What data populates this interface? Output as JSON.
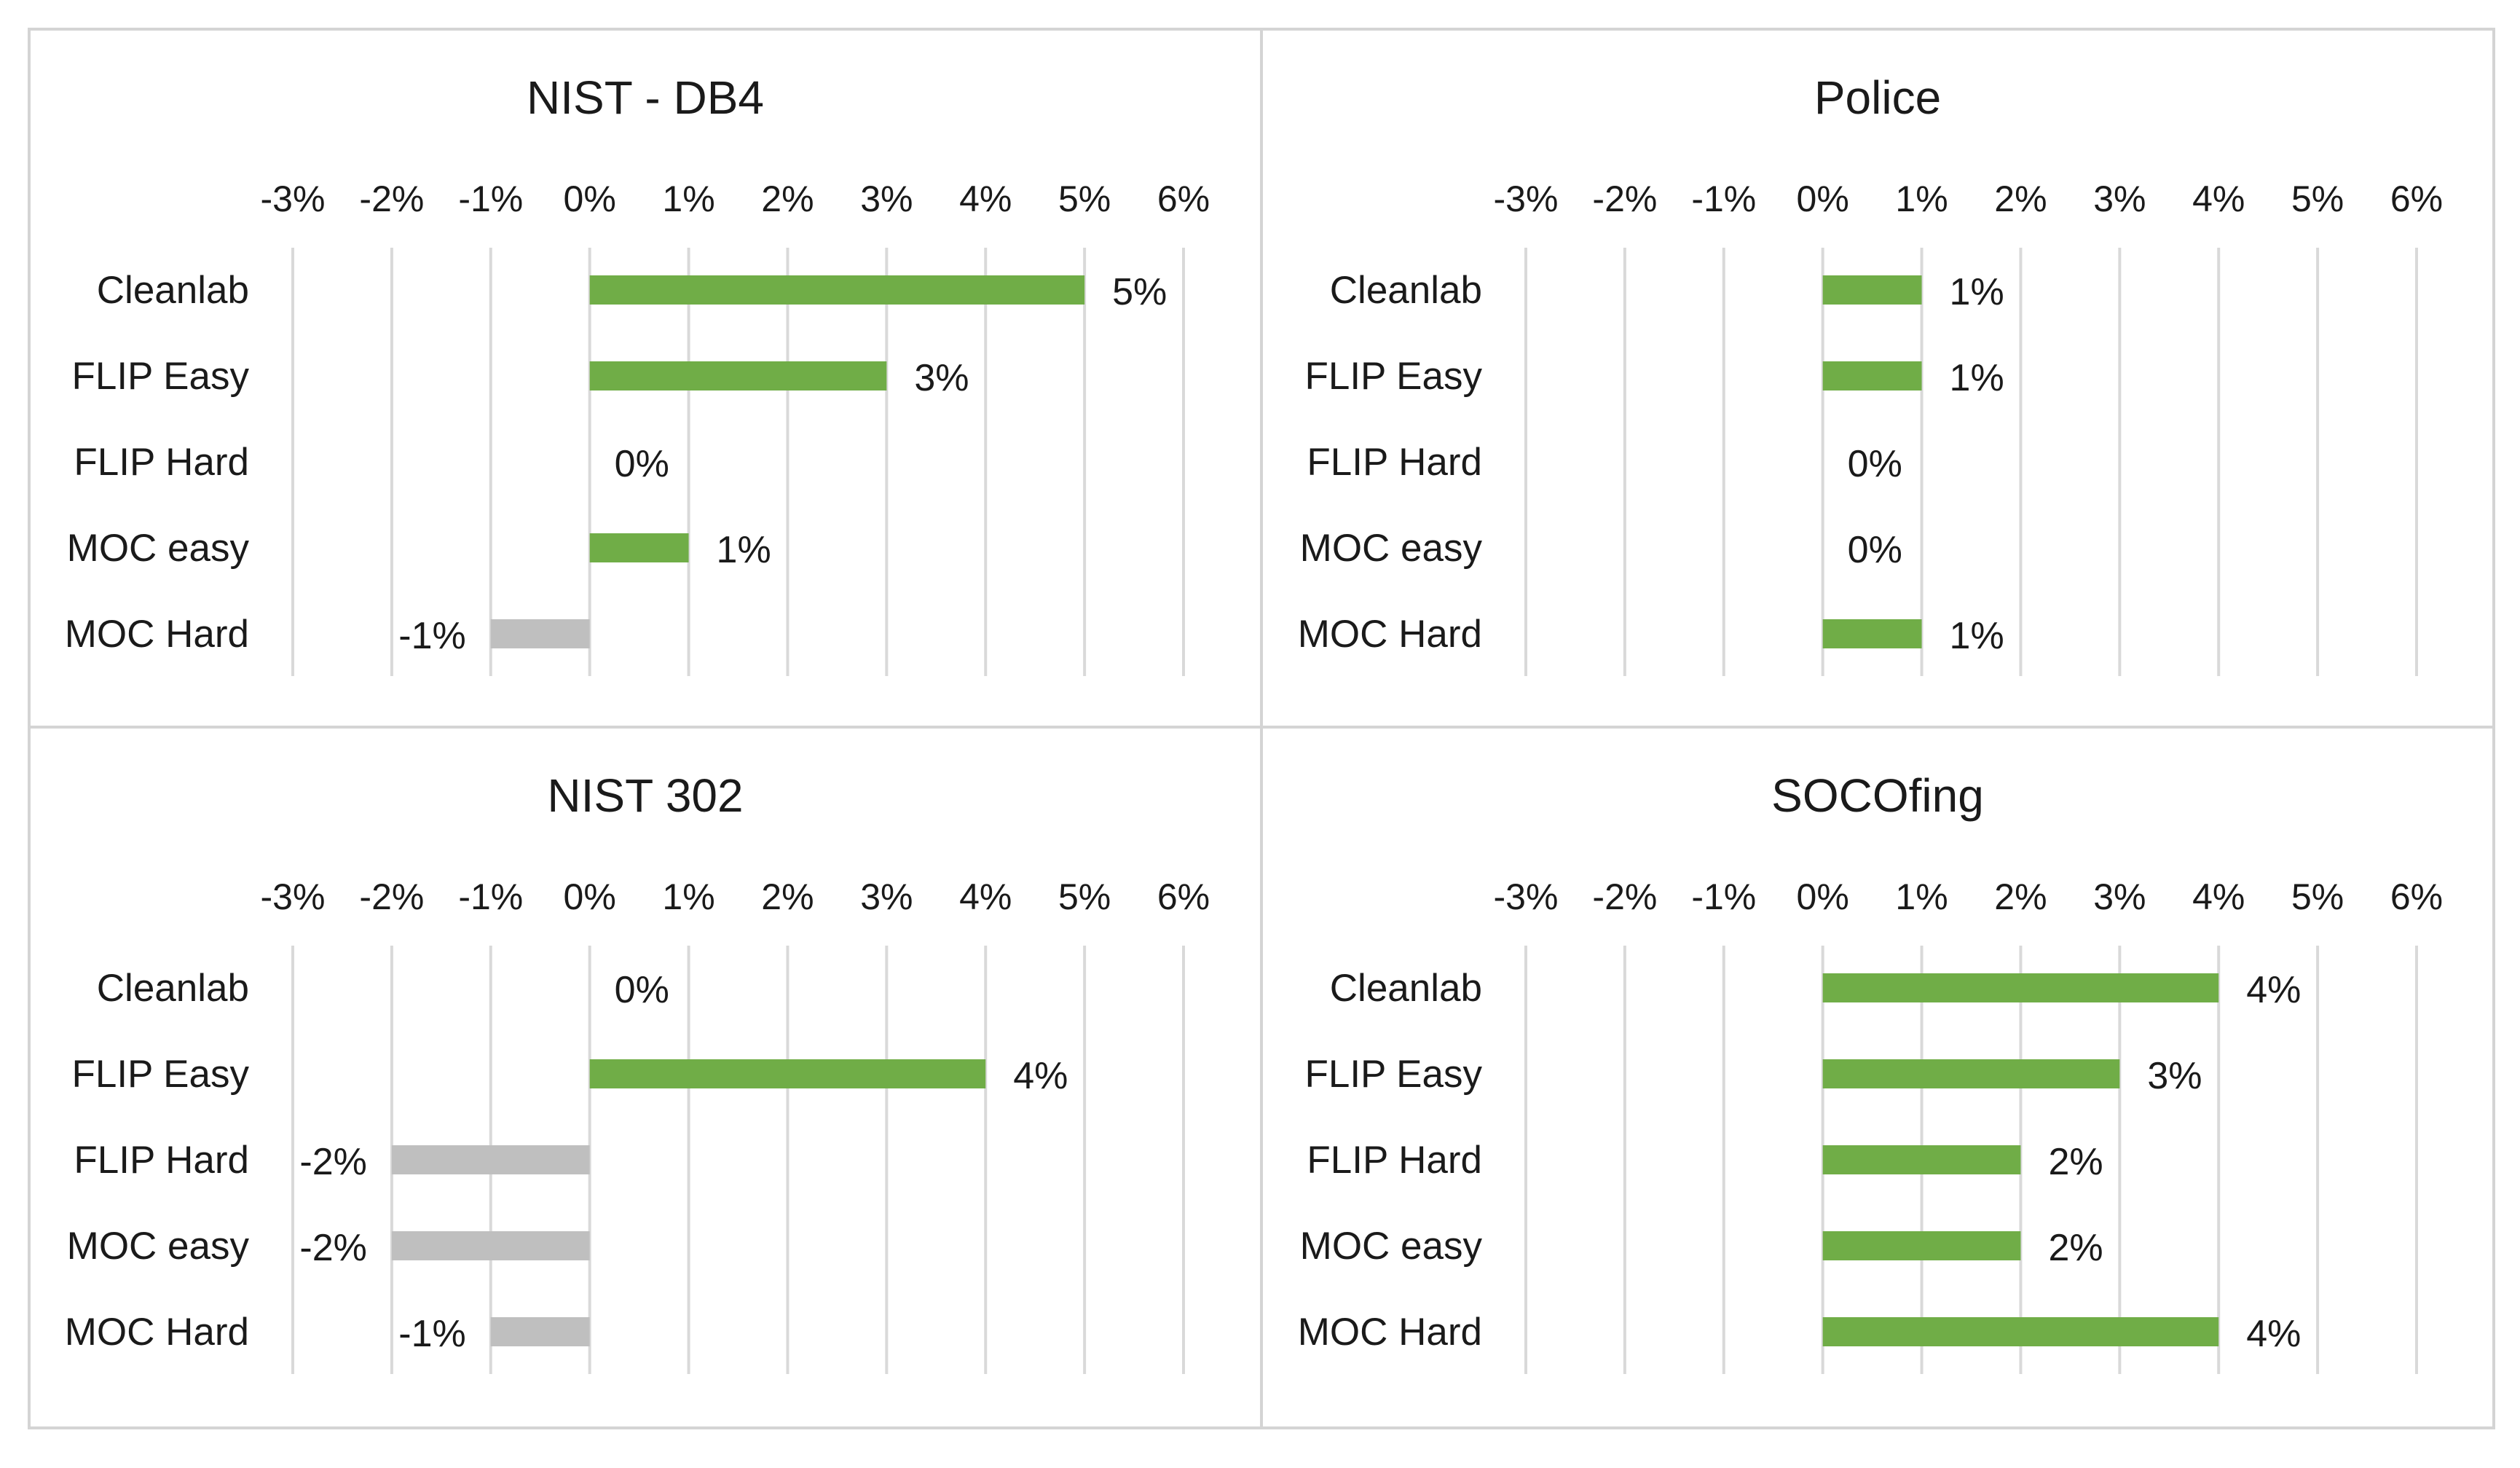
{
  "chart_data": [
    {
      "type": "bar",
      "orientation": "horizontal",
      "title": "NIST - DB4",
      "categories": [
        "Cleanlab",
        "FLIP Easy",
        "FLIP Hard",
        "MOC easy",
        "MOC Hard"
      ],
      "values": [
        5,
        3,
        0,
        1,
        -1
      ],
      "data_labels": [
        "5%",
        "3%",
        "0%",
        "1%",
        "-1%"
      ],
      "xlim": [
        -3,
        6
      ],
      "tick_values": [
        -3,
        -2,
        -1,
        0,
        1,
        2,
        3,
        4,
        5,
        6
      ],
      "tick_labels": [
        "-3%",
        "-2%",
        "-1%",
        "0%",
        "1%",
        "2%",
        "3%",
        "4%",
        "5%",
        "6%"
      ],
      "axis_position": "top",
      "grid": true,
      "positive_color": "#70ad47",
      "negative_color": "#bfbfbf"
    },
    {
      "type": "bar",
      "orientation": "horizontal",
      "title": "Police",
      "categories": [
        "Cleanlab",
        "FLIP Easy",
        "FLIP Hard",
        "MOC easy",
        "MOC Hard"
      ],
      "values": [
        1,
        1,
        0,
        0,
        1
      ],
      "data_labels": [
        "1%",
        "1%",
        "0%",
        "0%",
        "1%"
      ],
      "xlim": [
        -3,
        6
      ],
      "tick_values": [
        -3,
        -2,
        -1,
        0,
        1,
        2,
        3,
        4,
        5,
        6
      ],
      "tick_labels": [
        "-3%",
        "-2%",
        "-1%",
        "0%",
        "1%",
        "2%",
        "3%",
        "4%",
        "5%",
        "6%"
      ],
      "axis_position": "top",
      "grid": true,
      "positive_color": "#70ad47",
      "negative_color": "#bfbfbf"
    },
    {
      "type": "bar",
      "orientation": "horizontal",
      "title": "NIST 302",
      "categories": [
        "Cleanlab",
        "FLIP Easy",
        "FLIP Hard",
        "MOC easy",
        "MOC Hard"
      ],
      "values": [
        0,
        4,
        -2,
        -2,
        -1
      ],
      "data_labels": [
        "0%",
        "4%",
        "-2%",
        "-2%",
        "-1%"
      ],
      "xlim": [
        -3,
        6
      ],
      "tick_values": [
        -3,
        -2,
        -1,
        0,
        1,
        2,
        3,
        4,
        5,
        6
      ],
      "tick_labels": [
        "-3%",
        "-2%",
        "-1%",
        "0%",
        "1%",
        "2%",
        "3%",
        "4%",
        "5%",
        "6%"
      ],
      "axis_position": "top",
      "grid": true,
      "positive_color": "#70ad47",
      "negative_color": "#bfbfbf"
    },
    {
      "type": "bar",
      "orientation": "horizontal",
      "title": "SOCOfing",
      "categories": [
        "Cleanlab",
        "FLIP Easy",
        "FLIP Hard",
        "MOC easy",
        "MOC Hard"
      ],
      "values": [
        4,
        3,
        2,
        2,
        4
      ],
      "data_labels": [
        "4%",
        "3%",
        "2%",
        "2%",
        "4%"
      ],
      "xlim": [
        -3,
        6
      ],
      "tick_values": [
        -3,
        -2,
        -1,
        0,
        1,
        2,
        3,
        4,
        5,
        6
      ],
      "tick_labels": [
        "-3%",
        "-2%",
        "-1%",
        "0%",
        "1%",
        "2%",
        "3%",
        "4%",
        "5%",
        "6%"
      ],
      "axis_position": "top",
      "grid": true,
      "positive_color": "#70ad47",
      "negative_color": "#bfbfbf"
    }
  ]
}
